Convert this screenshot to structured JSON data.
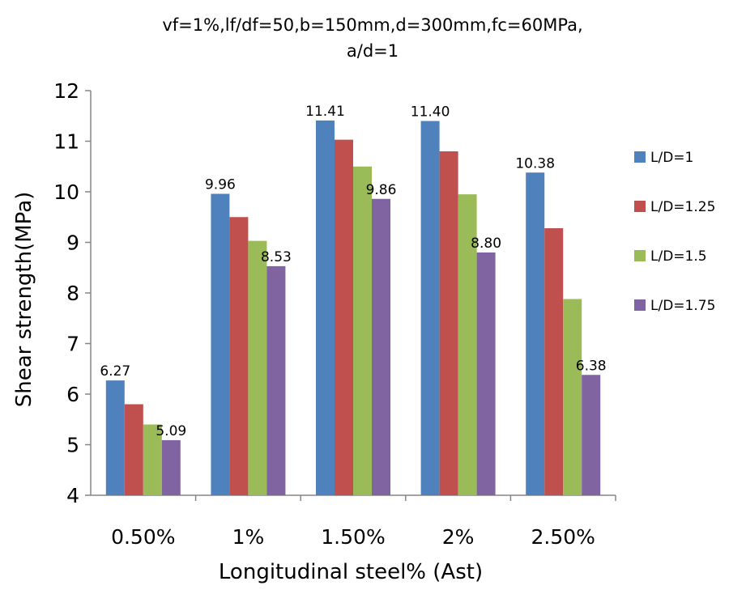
{
  "chart_data": {
    "type": "bar",
    "title": "vf=1%,lf/df=50,b=150mm,d=300mm,fc=60MPa,",
    "subtitle": "a/d=1",
    "xlabel": "Longitudinal steel% (Ast)",
    "ylabel": "Shear strength(MPa)",
    "ylim": [
      4,
      12
    ],
    "yticks": [
      "4",
      "5",
      "6",
      "7",
      "8",
      "9",
      "10",
      "11",
      "12"
    ],
    "grid": false,
    "legend_position": "right",
    "categories": [
      "0.50%",
      "1%",
      "1.50%",
      "2%",
      "2.50%"
    ],
    "series": [
      {
        "name": "L/D=1",
        "color": "#4F81BD",
        "values": [
          6.27,
          9.96,
          11.41,
          11.4,
          10.38
        ]
      },
      {
        "name": "L/D=1.25",
        "color": "#C0504D",
        "values": [
          5.8,
          9.5,
          11.03,
          10.8,
          9.28
        ]
      },
      {
        "name": "L/D=1.5",
        "color": "#9BBB59",
        "values": [
          5.4,
          9.03,
          10.5,
          9.95,
          7.88
        ]
      },
      {
        "name": "L/D=1.75",
        "color": "#8064A2",
        "values": [
          5.09,
          8.53,
          9.86,
          8.8,
          6.38
        ]
      }
    ],
    "data_labels": [
      {
        "series": 0,
        "category": 0,
        "text": "6.27"
      },
      {
        "series": 3,
        "category": 0,
        "text": "5.09"
      },
      {
        "series": 0,
        "category": 1,
        "text": "9.96"
      },
      {
        "series": 3,
        "category": 1,
        "text": "8.53"
      },
      {
        "series": 0,
        "category": 2,
        "text": "11.41"
      },
      {
        "series": 3,
        "category": 2,
        "text": "9.86"
      },
      {
        "series": 0,
        "category": 3,
        "text": "11.40"
      },
      {
        "series": 3,
        "category": 3,
        "text": "8.80"
      },
      {
        "series": 0,
        "category": 4,
        "text": "10.38"
      },
      {
        "series": 3,
        "category": 4,
        "text": "6.38"
      }
    ]
  }
}
